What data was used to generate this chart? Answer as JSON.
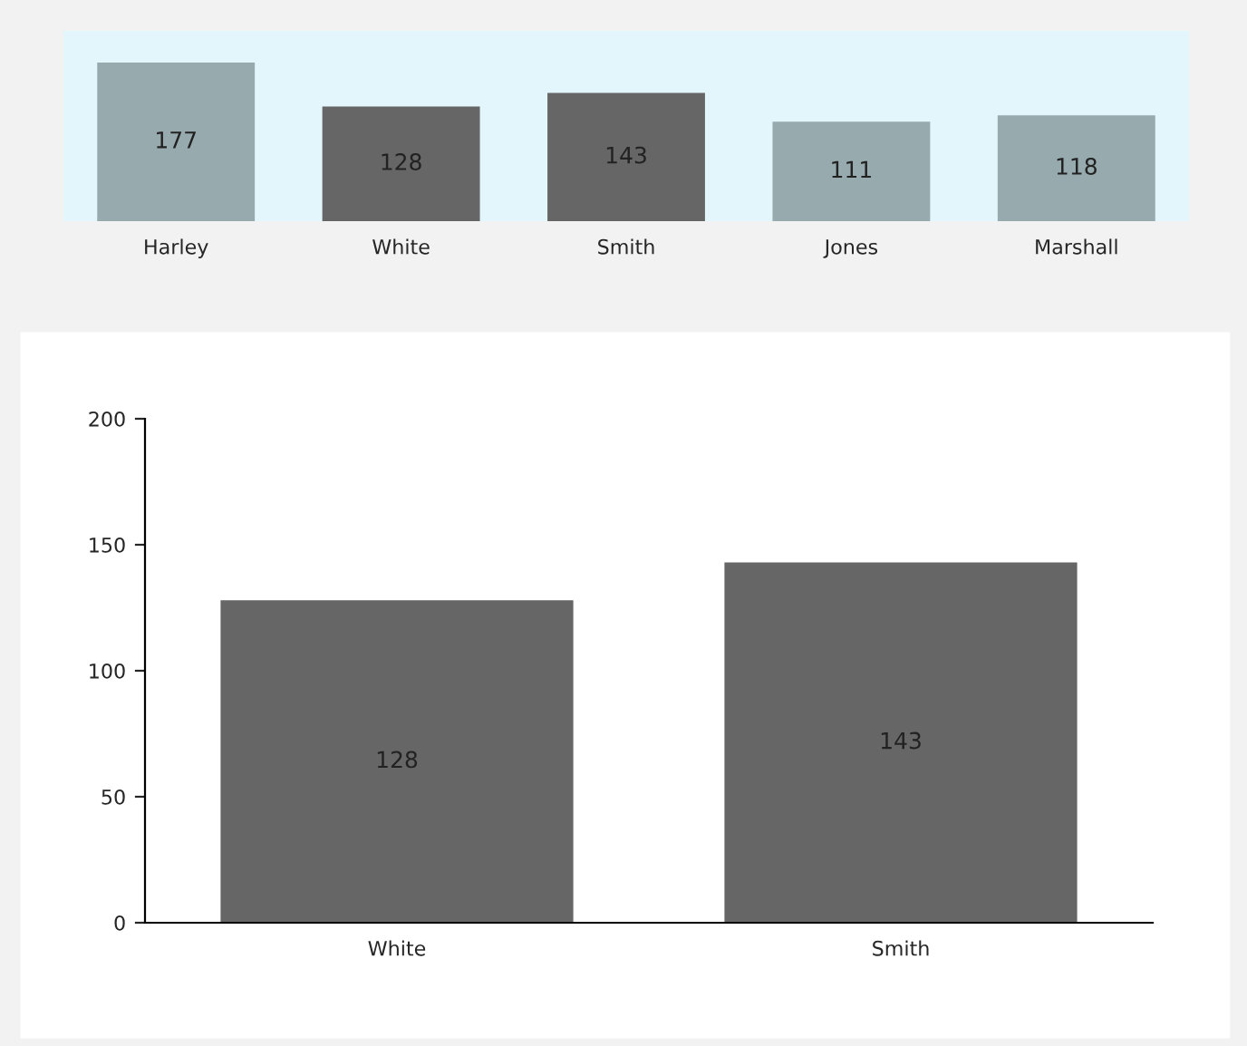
{
  "chart_data": [
    {
      "type": "bar",
      "categories": [
        "Harley",
        "White",
        "Smith",
        "Jones",
        "Marshall"
      ],
      "values": [
        177,
        128,
        143,
        111,
        118
      ],
      "colors": [
        "#97aaae",
        "#666666",
        "#666666",
        "#97aaae",
        "#97aaae"
      ],
      "data_labels": true,
      "tick_labels": "x"
    },
    {
      "type": "bar",
      "categories": [
        "White",
        "Smith"
      ],
      "values": [
        128,
        143
      ],
      "color": "#666666",
      "ylim": [
        0,
        200
      ],
      "yticks": [
        0,
        50,
        100,
        150,
        200
      ],
      "data_labels": true
    }
  ]
}
